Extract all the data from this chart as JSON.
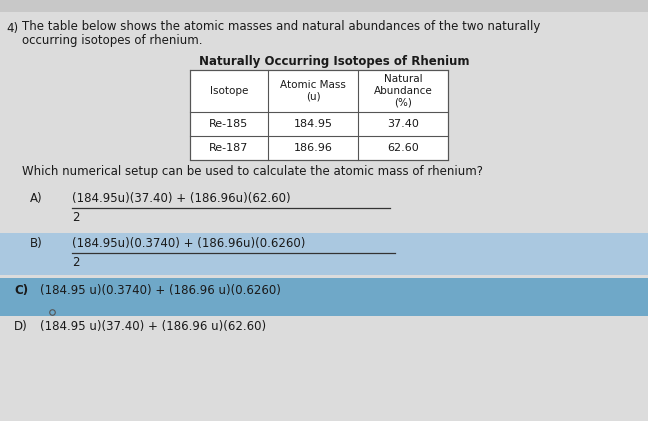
{
  "question_number": "4)",
  "intro_text_line1": "The table below shows the atomic masses and natural abundances of the two naturally",
  "intro_text_line2": "occurring isotopes of rhenium.",
  "table_title": "Naturally Occurring Isotopes of Rhenium",
  "table_headers": [
    "Isotope",
    "Atomic Mass\n(u)",
    "Natural\nAbundance\n(%)"
  ],
  "table_rows": [
    [
      "Re-185",
      "184.95",
      "37.40"
    ],
    [
      "Re-187",
      "186.96",
      "62.60"
    ]
  ],
  "question_text": "Which numerical setup can be used to calculate the atomic mass of rhenium?",
  "option_A_num": "(184.95u)(37.40) + (186.96u)(62.60)",
  "option_A_den": "2",
  "option_B_num": "(184.95u)(0.3740) + (186.96u)(0.6260)",
  "option_B_den": "2",
  "option_C": "(184.95 u)(0.3740) + (186.96 u)(0.6260)",
  "option_D": "(184.95 u)(37.40) + (186.96 u)(62.60)",
  "highlight_B_color": "#aac8e0",
  "highlight_C_color": "#6fa8c8",
  "bg_color": "#dcdcdc",
  "text_color": "#1a1a1a",
  "table_bg": "#ffffff"
}
